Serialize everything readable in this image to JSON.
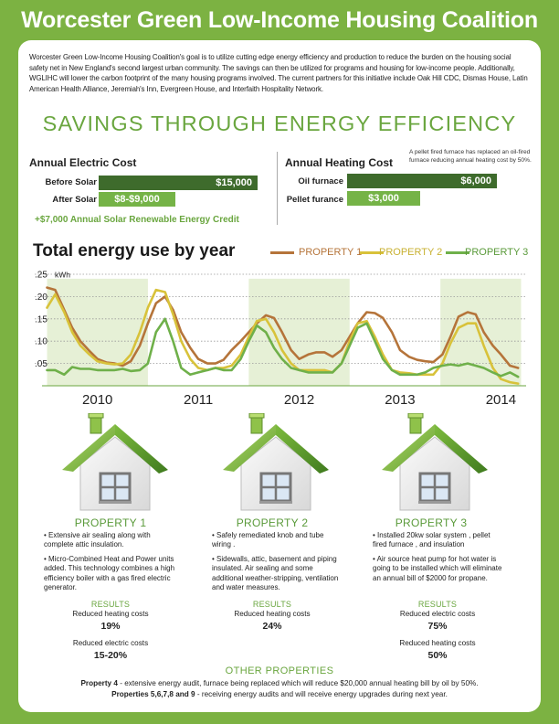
{
  "header": {
    "title": "Worcester Green Low-Income Housing Coalition"
  },
  "intro": "Worcester Green Low-Income Housing Coalition's goal is to utilize cutting edge energy efficiency and production to reduce the burden on the housing social safety net in New England's second largest urban community.  The savings can then be utilized for programs and housing for low-income people.  Additionally, WGLIHC will lower the carbon footprint of the many housing programs involved.  The current partners for this initiative include Oak Hill CDC, Dismas House, Latin American Health Alliance, Jeremiah's Inn, Evergreen House, and Interfaith Hospitality Network.",
  "savings_title": "SAVINGS THROUGH ENERGY EFFICIENCY",
  "electric": {
    "title": "Annual Electric Cost",
    "before_label": "Before Solar",
    "before_value": "$15,000",
    "after_label": "After Solar",
    "after_value": "$8-$9,000",
    "credit": "+$7,000 Annual Solar Renewable Energy Credit"
  },
  "heating": {
    "title": "Annual Heating Cost",
    "note": "A pellet fired furnace has replaced an oil-fired furnace reducing annual heating cost by 50%.",
    "oil_label": "Oil furnace",
    "oil_value": "$6,000",
    "pellet_label": "Pellet furance",
    "pellet_value": "$3,000"
  },
  "chart_title": "Total energy use by year",
  "colors": {
    "property1": "#b5743a",
    "property2": "#d8c23a",
    "property3": "#6fb04a",
    "accent": "#6aa63f",
    "dark_bar": "#3e6b2c",
    "band": "#e6f0d6"
  },
  "chart_data": {
    "type": "line",
    "title": "Total energy use by year",
    "unit_label": "kWh",
    "ylim": [
      0,
      0.25
    ],
    "yticks": [
      ".25",
      ".20",
      ".15",
      ".10",
      ".05"
    ],
    "ytick_values": [
      0.25,
      0.2,
      0.15,
      0.1,
      0.05
    ],
    "years": [
      "2010",
      "2011",
      "2012",
      "2013",
      "2014"
    ],
    "xlim": [
      2009.5,
      2014.3
    ],
    "shaded_bands": [
      [
        2009.55,
        2010.55
      ],
      [
        2011.55,
        2012.55
      ],
      [
        2013.45,
        2014.25
      ]
    ],
    "series": [
      {
        "name": "PROPERTY 1",
        "x": [
          2009.55,
          2009.63,
          2009.72,
          2009.8,
          2009.88,
          2009.97,
          2010.05,
          2010.14,
          2010.22,
          2010.3,
          2010.38,
          2010.47,
          2010.55,
          2010.63,
          2010.72,
          2010.8,
          2010.88,
          2010.97,
          2011.05,
          2011.14,
          2011.22,
          2011.3,
          2011.38,
          2011.47,
          2011.55,
          2011.63,
          2011.72,
          2011.8,
          2011.88,
          2011.97,
          2012.05,
          2012.14,
          2012.22,
          2012.3,
          2012.38,
          2012.47,
          2012.55,
          2012.63,
          2012.72,
          2012.8,
          2012.88,
          2012.97,
          2013.05,
          2013.14,
          2013.22,
          2013.3,
          2013.38,
          2013.47,
          2013.55,
          2013.63,
          2013.72,
          2013.8,
          2013.88,
          2013.97,
          2014.05,
          2014.14,
          2014.22
        ],
        "y": [
          0.22,
          0.215,
          0.17,
          0.13,
          0.1,
          0.078,
          0.06,
          0.052,
          0.05,
          0.045,
          0.055,
          0.09,
          0.14,
          0.185,
          0.2,
          0.17,
          0.12,
          0.085,
          0.06,
          0.05,
          0.05,
          0.058,
          0.08,
          0.1,
          0.12,
          0.14,
          0.158,
          0.152,
          0.12,
          0.08,
          0.06,
          0.07,
          0.075,
          0.075,
          0.065,
          0.08,
          0.11,
          0.14,
          0.165,
          0.163,
          0.152,
          0.12,
          0.08,
          0.065,
          0.058,
          0.055,
          0.053,
          0.07,
          0.11,
          0.155,
          0.165,
          0.16,
          0.12,
          0.09,
          0.07,
          0.045,
          0.04
        ]
      },
      {
        "name": "PROPERTY 2",
        "x": [
          2009.55,
          2009.63,
          2009.72,
          2009.8,
          2009.88,
          2009.97,
          2010.05,
          2010.14,
          2010.22,
          2010.3,
          2010.38,
          2010.47,
          2010.55,
          2010.63,
          2010.72,
          2010.8,
          2010.88,
          2010.97,
          2011.05,
          2011.14,
          2011.22,
          2011.3,
          2011.38,
          2011.47,
          2011.55,
          2011.63,
          2011.72,
          2011.8,
          2011.88,
          2011.97,
          2012.05,
          2012.14,
          2012.22,
          2012.3,
          2012.38,
          2012.47,
          2012.55,
          2012.63,
          2012.72,
          2012.8,
          2012.88,
          2012.97,
          2013.05,
          2013.14,
          2013.22,
          2013.3,
          2013.38,
          2013.47,
          2013.55,
          2013.63,
          2013.72,
          2013.8,
          2013.88,
          2013.97,
          2014.05,
          2014.14,
          2014.22
        ],
        "y": [
          0.175,
          0.205,
          0.165,
          0.12,
          0.09,
          0.07,
          0.055,
          0.05,
          0.048,
          0.05,
          0.07,
          0.12,
          0.175,
          0.215,
          0.21,
          0.16,
          0.1,
          0.06,
          0.04,
          0.035,
          0.04,
          0.04,
          0.045,
          0.07,
          0.11,
          0.145,
          0.15,
          0.12,
          0.08,
          0.05,
          0.035,
          0.035,
          0.035,
          0.035,
          0.03,
          0.05,
          0.1,
          0.14,
          0.145,
          0.11,
          0.07,
          0.035,
          0.03,
          0.028,
          0.025,
          0.025,
          0.025,
          0.05,
          0.095,
          0.13,
          0.14,
          0.14,
          0.09,
          0.04,
          0.015,
          0.008,
          0.005
        ]
      },
      {
        "name": "PROPERTY 3",
        "x": [
          2009.55,
          2009.63,
          2009.72,
          2009.8,
          2009.88,
          2009.97,
          2010.05,
          2010.14,
          2010.22,
          2010.3,
          2010.38,
          2010.47,
          2010.55,
          2010.63,
          2010.72,
          2010.8,
          2010.88,
          2010.97,
          2011.05,
          2011.14,
          2011.22,
          2011.3,
          2011.38,
          2011.47,
          2011.55,
          2011.63,
          2011.72,
          2011.8,
          2011.88,
          2011.97,
          2012.05,
          2012.14,
          2012.22,
          2012.3,
          2012.38,
          2012.47,
          2012.55,
          2012.63,
          2012.72,
          2012.8,
          2012.88,
          2012.97,
          2013.05,
          2013.14,
          2013.22,
          2013.3,
          2013.38,
          2013.47,
          2013.55,
          2013.63,
          2013.72,
          2013.8,
          2013.88,
          2013.97,
          2014.05,
          2014.14,
          2014.22
        ],
        "y": [
          0.035,
          0.035,
          0.025,
          0.042,
          0.038,
          0.038,
          0.035,
          0.035,
          0.035,
          0.038,
          0.033,
          0.035,
          0.05,
          0.12,
          0.15,
          0.1,
          0.04,
          0.025,
          0.03,
          0.035,
          0.04,
          0.035,
          0.035,
          0.06,
          0.1,
          0.135,
          0.12,
          0.085,
          0.06,
          0.04,
          0.035,
          0.03,
          0.03,
          0.03,
          0.03,
          0.05,
          0.09,
          0.13,
          0.14,
          0.1,
          0.06,
          0.035,
          0.025,
          0.025,
          0.025,
          0.03,
          0.04,
          0.045,
          0.048,
          0.045,
          0.05,
          0.045,
          0.04,
          0.03,
          0.022,
          0.03,
          0.02
        ]
      }
    ]
  },
  "properties": [
    {
      "title": "PROPERTY 1",
      "bullets": [
        "•   Extensive air sealing along with complete attic insulation.",
        "• Micro-Combined Heat and Power units added.  This technology combines a high efficiency boiler with a gas fired electric generator."
      ],
      "results_heading": "RESULTS",
      "results": [
        {
          "label": "Reduced heating costs",
          "value": "19%"
        },
        {
          "label": "Reduced electric costs",
          "value": "15-20%"
        }
      ]
    },
    {
      "title": "PROPERTY 2",
      "bullets": [
        "• Safely remediated knob and tube wiring .",
        "• Sidewalls, attic, basement and piping insulated. Air sealing and some additional weather-stripping, ventilation and water measures."
      ],
      "results_heading": "RESULTS",
      "results": [
        {
          "label": "Reduced heating costs",
          "value": "24%"
        }
      ]
    },
    {
      "title": "PROPERTY 3",
      "bullets": [
        "• Installed 20kw solar system , pellet fired furnace , and insulation",
        "• Air source heat pump for hot water is going to be installed which will eliminate an annual bill of $2000 for propane."
      ],
      "results_heading": "RESULTS",
      "results": [
        {
          "label": "Reduced electric costs",
          "value": "75%"
        },
        {
          "label": "Reduced heating costs",
          "value": "50%"
        }
      ]
    }
  ],
  "other": {
    "title": "OTHER PROPERTIES",
    "line1_bold": "Property 4",
    "line1_text": " - extensive energy audit, furnace being replaced which will reduce $20,000 annual heating bill by oil by 50%.",
    "line2_bold": "Properties 5,6,7,8 and 9",
    "line2_text": " - receiving energy audits and will receive energy upgrades during next year."
  }
}
